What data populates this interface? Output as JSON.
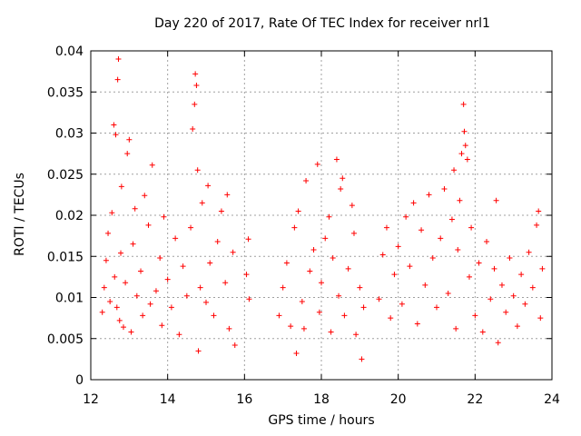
{
  "chart_data": {
    "type": "scatter",
    "title": "Day 220 of 2017, Rate Of TEC Index for receiver nrl1",
    "xlabel": "GPS time / hours",
    "ylabel": "ROTI / TECUs",
    "xlim": [
      12,
      24
    ],
    "ylim": [
      0,
      0.04
    ],
    "xticks": [
      "12",
      "14",
      "16",
      "18",
      "20",
      "22",
      "24"
    ],
    "yticks": [
      "0",
      "0.005",
      "0.01",
      "0.015",
      "0.02",
      "0.025",
      "0.03",
      "0.035",
      "0.04"
    ],
    "grid": true,
    "marker": "plus",
    "marker_color": "#ff0000",
    "series": [
      {
        "points": [
          [
            12.3,
            0.0082
          ],
          [
            12.35,
            0.0112
          ],
          [
            12.4,
            0.0145
          ],
          [
            12.45,
            0.0178
          ],
          [
            12.5,
            0.0095
          ],
          [
            12.55,
            0.0203
          ],
          [
            12.6,
            0.031
          ],
          [
            12.62,
            0.0125
          ],
          [
            12.65,
            0.0298
          ],
          [
            12.68,
            0.0088
          ],
          [
            12.7,
            0.0365
          ],
          [
            12.72,
            0.039
          ],
          [
            12.75,
            0.0072
          ],
          [
            12.78,
            0.0154
          ],
          [
            12.8,
            0.0235
          ],
          [
            12.85,
            0.0064
          ],
          [
            12.9,
            0.0118
          ],
          [
            12.95,
            0.0275
          ],
          [
            13.0,
            0.0292
          ],
          [
            13.05,
            0.0058
          ],
          [
            13.1,
            0.0165
          ],
          [
            13.15,
            0.0208
          ],
          [
            13.2,
            0.0102
          ],
          [
            13.3,
            0.0132
          ],
          [
            13.35,
            0.0078
          ],
          [
            13.4,
            0.0224
          ],
          [
            13.5,
            0.0188
          ],
          [
            13.55,
            0.0092
          ],
          [
            13.6,
            0.0261
          ],
          [
            13.7,
            0.0108
          ],
          [
            13.8,
            0.0148
          ],
          [
            13.85,
            0.0066
          ],
          [
            13.9,
            0.0198
          ],
          [
            14.0,
            0.0122
          ],
          [
            14.1,
            0.0088
          ],
          [
            14.2,
            0.0172
          ],
          [
            14.3,
            0.0055
          ],
          [
            14.4,
            0.0138
          ],
          [
            14.5,
            0.0102
          ],
          [
            14.6,
            0.0185
          ],
          [
            14.65,
            0.0305
          ],
          [
            14.7,
            0.0335
          ],
          [
            14.72,
            0.0372
          ],
          [
            14.75,
            0.0358
          ],
          [
            14.78,
            0.0255
          ],
          [
            14.8,
            0.0035
          ],
          [
            14.85,
            0.0112
          ],
          [
            14.9,
            0.0215
          ],
          [
            15.0,
            0.0094
          ],
          [
            15.05,
            0.0236
          ],
          [
            15.1,
            0.0142
          ],
          [
            15.2,
            0.0078
          ],
          [
            15.3,
            0.0168
          ],
          [
            15.4,
            0.0205
          ],
          [
            15.5,
            0.0118
          ],
          [
            15.55,
            0.0225
          ],
          [
            15.6,
            0.0062
          ],
          [
            15.7,
            0.0155
          ],
          [
            15.75,
            0.0042
          ],
          [
            16.05,
            0.0128
          ],
          [
            16.1,
            0.0171
          ],
          [
            16.12,
            0.0098
          ],
          [
            16.9,
            0.0078
          ],
          [
            17.0,
            0.0112
          ],
          [
            17.1,
            0.0142
          ],
          [
            17.2,
            0.0065
          ],
          [
            17.3,
            0.0185
          ],
          [
            17.35,
            0.0032
          ],
          [
            17.4,
            0.0205
          ],
          [
            17.5,
            0.0095
          ],
          [
            17.55,
            0.0062
          ],
          [
            17.6,
            0.0242
          ],
          [
            17.7,
            0.0132
          ],
          [
            17.8,
            0.0158
          ],
          [
            17.9,
            0.0262
          ],
          [
            17.95,
            0.0082
          ],
          [
            18.0,
            0.0118
          ],
          [
            18.1,
            0.0172
          ],
          [
            18.2,
            0.0198
          ],
          [
            18.25,
            0.0058
          ],
          [
            18.3,
            0.0148
          ],
          [
            18.4,
            0.0268
          ],
          [
            18.45,
            0.0102
          ],
          [
            18.5,
            0.0232
          ],
          [
            18.55,
            0.0245
          ],
          [
            18.6,
            0.0078
          ],
          [
            18.7,
            0.0135
          ],
          [
            18.8,
            0.0212
          ],
          [
            18.85,
            0.0178
          ],
          [
            18.9,
            0.0055
          ],
          [
            19.0,
            0.0112
          ],
          [
            19.05,
            0.0025
          ],
          [
            19.1,
            0.0088
          ],
          [
            19.5,
            0.0098
          ],
          [
            19.6,
            0.0152
          ],
          [
            19.7,
            0.0185
          ],
          [
            19.8,
            0.0075
          ],
          [
            19.9,
            0.0128
          ],
          [
            20.0,
            0.0162
          ],
          [
            20.1,
            0.0092
          ],
          [
            20.2,
            0.0198
          ],
          [
            20.3,
            0.0138
          ],
          [
            20.4,
            0.0215
          ],
          [
            20.5,
            0.0068
          ],
          [
            20.6,
            0.0182
          ],
          [
            20.7,
            0.0115
          ],
          [
            20.8,
            0.0225
          ],
          [
            20.9,
            0.0148
          ],
          [
            21.0,
            0.0088
          ],
          [
            21.1,
            0.0172
          ],
          [
            21.2,
            0.0232
          ],
          [
            21.3,
            0.0105
          ],
          [
            21.4,
            0.0195
          ],
          [
            21.45,
            0.0255
          ],
          [
            21.5,
            0.0062
          ],
          [
            21.55,
            0.0158
          ],
          [
            21.6,
            0.0218
          ],
          [
            21.65,
            0.0275
          ],
          [
            21.7,
            0.0335
          ],
          [
            21.72,
            0.0302
          ],
          [
            21.75,
            0.0285
          ],
          [
            21.8,
            0.0268
          ],
          [
            21.85,
            0.0125
          ],
          [
            21.9,
            0.0185
          ],
          [
            22.0,
            0.0078
          ],
          [
            22.1,
            0.0142
          ],
          [
            22.2,
            0.0058
          ],
          [
            22.3,
            0.0168
          ],
          [
            22.4,
            0.0098
          ],
          [
            22.5,
            0.0135
          ],
          [
            22.55,
            0.0218
          ],
          [
            22.6,
            0.0045
          ],
          [
            22.7,
            0.0115
          ],
          [
            22.8,
            0.0082
          ],
          [
            22.9,
            0.0148
          ],
          [
            23.0,
            0.0102
          ],
          [
            23.1,
            0.0065
          ],
          [
            23.2,
            0.0128
          ],
          [
            23.3,
            0.0092
          ],
          [
            23.4,
            0.0155
          ],
          [
            23.5,
            0.0112
          ],
          [
            23.6,
            0.0188
          ],
          [
            23.65,
            0.0205
          ],
          [
            23.7,
            0.0075
          ],
          [
            23.75,
            0.0135
          ]
        ]
      }
    ]
  }
}
